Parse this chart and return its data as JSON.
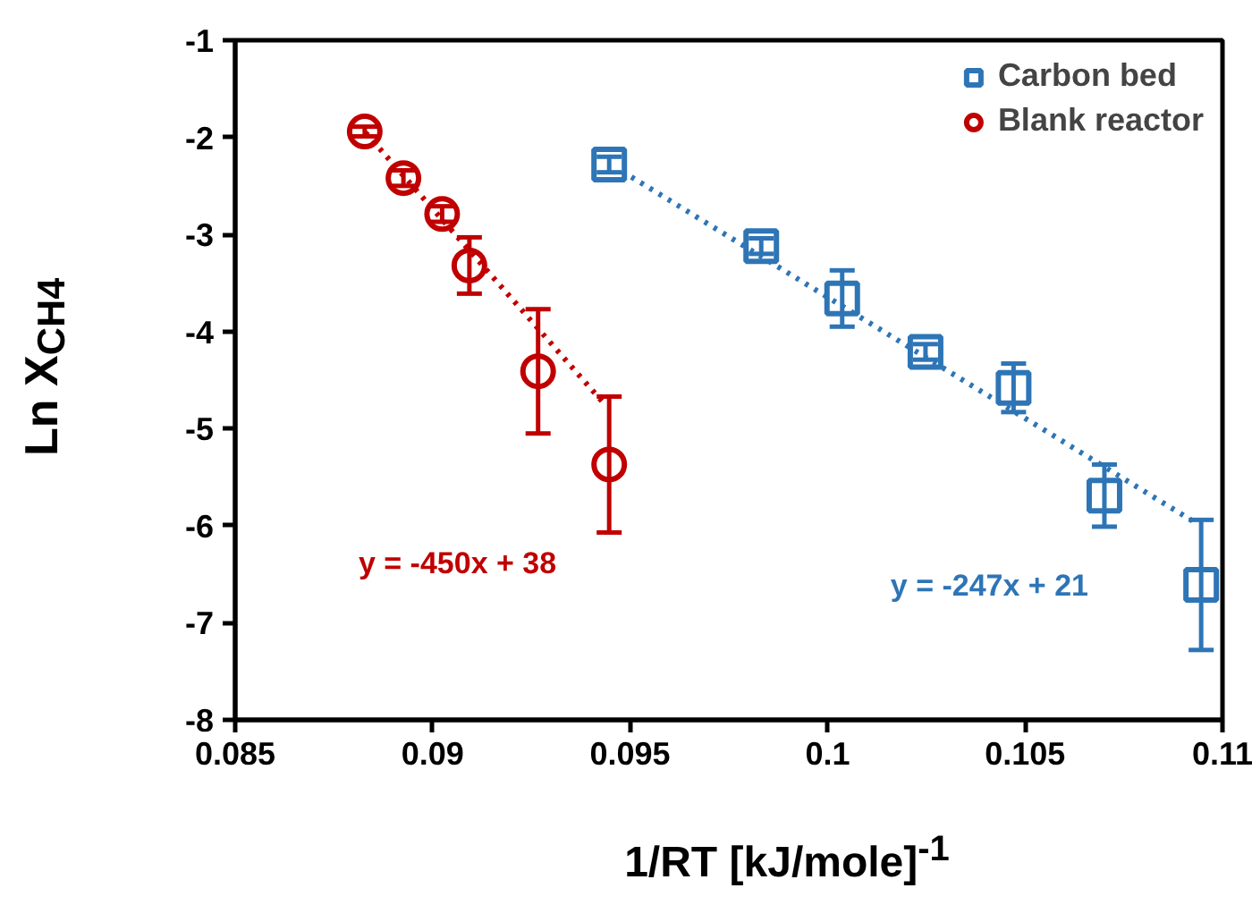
{
  "chart_data": {
    "type": "scatter",
    "xlabel": "1/RT [kJ/mole]$^{-1}$",
    "ylabel": "Ln X$_{CH4}$",
    "xlim": [
      0.085,
      0.11
    ],
    "ylim": [
      -8,
      -1
    ],
    "xticks": [
      0.085,
      0.09,
      0.095,
      0.1,
      0.105,
      0.11
    ],
    "yticks": [
      -8,
      -7,
      -6,
      -5,
      -4,
      -3,
      -2,
      -1
    ],
    "grid": false,
    "legend": "top right",
    "series": [
      {
        "name": "Carbon bed",
        "color": "#2e75b6",
        "marker": "square",
        "x": [
          0.09447,
          0.09832,
          0.10037,
          0.10248,
          0.10471,
          0.10701,
          0.10946
        ],
        "values": [
          -2.28,
          -3.12,
          -3.66,
          -4.21,
          -4.58,
          -5.69,
          -6.61
        ],
        "errors": [
          0.08,
          0.08,
          0.29,
          0.08,
          0.25,
          0.32,
          0.67
        ]
      },
      {
        "name": "Blank reactor",
        "color": "#c00000",
        "marker": "circle",
        "x": [
          0.08828,
          0.08926,
          0.09024,
          0.09093,
          0.09267,
          0.09447
        ],
        "values": [
          -1.94,
          -2.42,
          -2.79,
          -3.32,
          -4.41,
          -5.37
        ],
        "errors": [
          0.05,
          0.08,
          0.08,
          0.29,
          0.64,
          0.7
        ]
      },
      {
        "type": "line",
        "color": "#2e75b6",
        "line_style": "dotted",
        "marker": "none",
        "x": [
          0.0948,
          0.10932
        ],
        "values": [
          -2.35,
          -5.97
        ]
      },
      {
        "type": "line",
        "color": "#c00000",
        "line_style": "dotted",
        "marker": "none",
        "x": [
          0.0883,
          0.0944
        ],
        "values": [
          -1.95,
          -4.77
        ]
      }
    ],
    "annotations": [
      "y = -247x + 21",
      "y = -450x + 38"
    ]
  }
}
